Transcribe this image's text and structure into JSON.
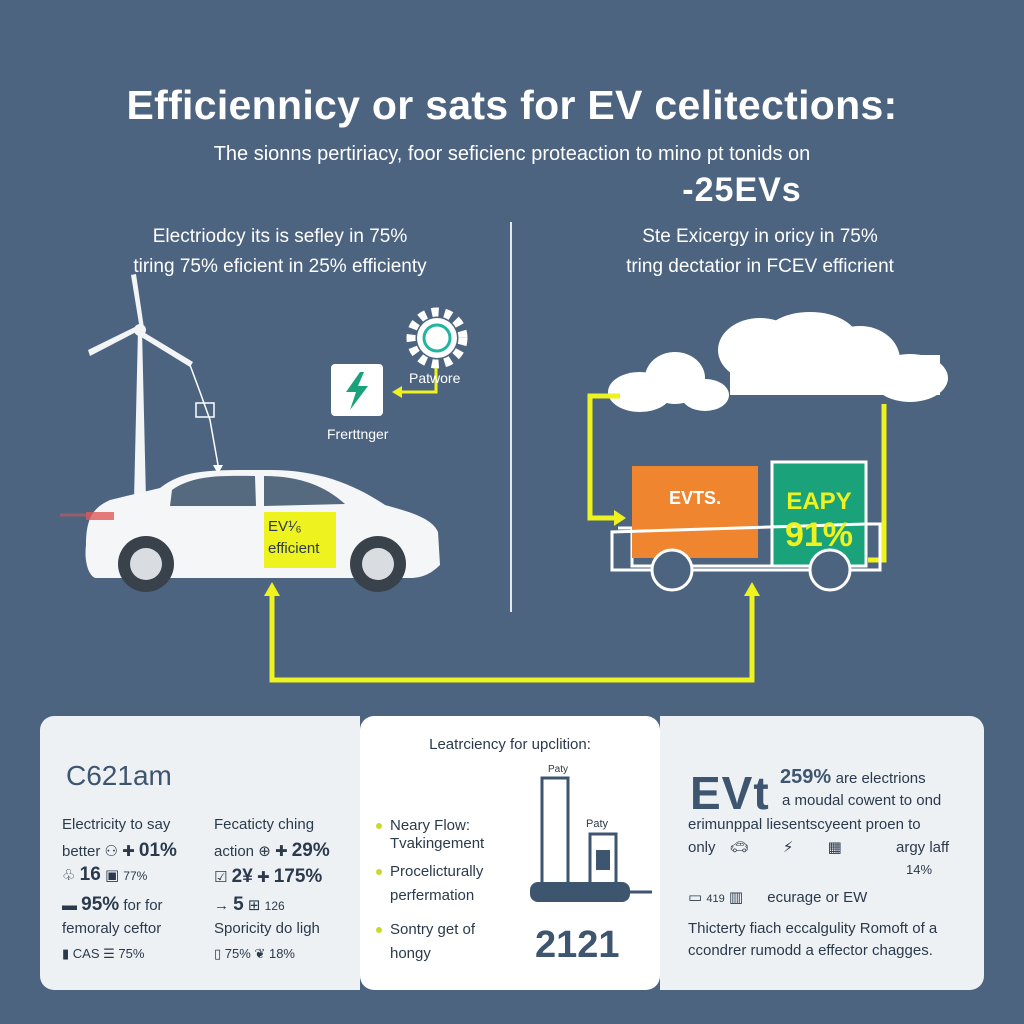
{
  "header": {
    "title": "Efficiennicy or sats for EV celitections:",
    "subtitle": "The sionns pertiriacy, foor seficienc proteaction to mino pt tonids on",
    "big_figure": "-25EVs"
  },
  "left_section": {
    "caption_line1": "Electriodcy its is sefley in 75%",
    "caption_line2": "tiring 75% eficient in 25% efficienty",
    "gear_label": "Patwore",
    "charger_label": "Frerttnger",
    "car_badge_line1": "EV¹⁄₆",
    "car_badge_line2": "efficient"
  },
  "right_section": {
    "caption_line1": "Ste Exicergy in oricy in 75%",
    "caption_line2": "tring dectatior in FCEV efficrient",
    "orange_box_label": "EVTS.",
    "green_box_line1": "EAPY",
    "green_box_line2": "91%"
  },
  "panel_left": {
    "title": "C621am",
    "col1": {
      "heading_line1": "Electricity to say",
      "row1_text": "better",
      "row1_value": "01%",
      "row2_value": "16",
      "row2_small": "77%",
      "row3_value": "95%",
      "row3_text": "for for",
      "row4_text": "femoraly ceftor",
      "row5_text": "CAS",
      "row5_value": "75%"
    },
    "col2": {
      "heading_line1": "Fecaticty ching",
      "row1_text": "action",
      "row1_value": "29%",
      "row2_value": "2¥",
      "row2_value_b": "175%",
      "row3_value": "5",
      "row3_small": "126",
      "row4_text": "Sporicity do ligh",
      "row5_value": "75%",
      "row5_value_b": "18%"
    }
  },
  "panel_mid": {
    "title": "Leatrciency for upclition:",
    "items": [
      {
        "line1": "Neary Flow:",
        "line2": "Tvakingement"
      },
      {
        "line1": "Procelicturally",
        "line2": "perfermation"
      },
      {
        "line1": "Sontry get of",
        "line2": "hongy"
      }
    ],
    "bar_label_tall": "Paty",
    "bar_label_short": "Paty",
    "year": "2121"
  },
  "panel_right": {
    "headline": "EVt",
    "headline_pct": "259%",
    "headline_text": "are electrions",
    "line2": "a moudal cowent to ond",
    "line3": "erimunppal liesentscyeent proen to",
    "line4_left": "only",
    "line4_right": "argy laff",
    "line5_right": "14%",
    "line6_left": "419",
    "line6_right": "ecurage or EW",
    "footer_line1": "Thicterty fiach eccalgulity Romoft of a",
    "footer_line2": "ccondrer rumodd a effector chagges."
  },
  "colors": {
    "background": "#4d6480",
    "accent_yellow": "#eef21f",
    "accent_green": "#1aa37a",
    "accent_orange": "#f08530",
    "panel": "#eef1f4"
  }
}
